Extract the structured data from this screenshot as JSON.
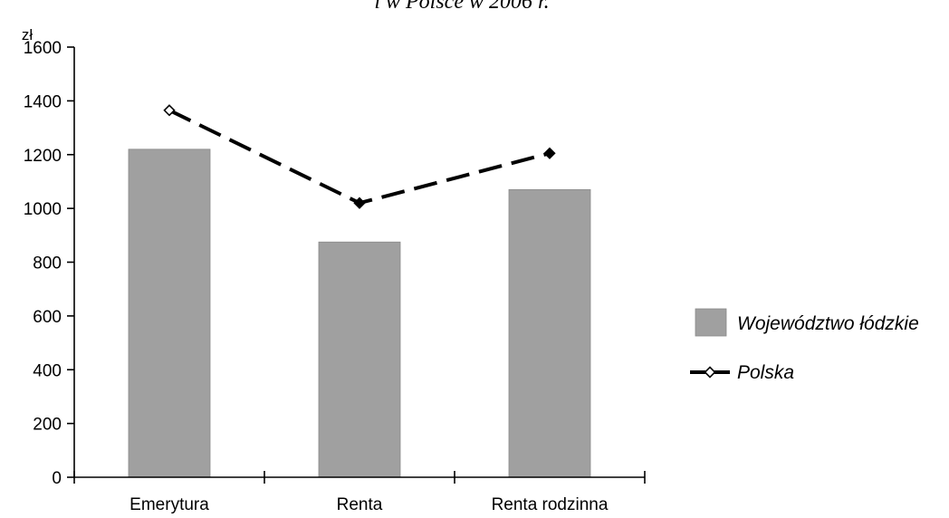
{
  "chart_data": {
    "type": "bar",
    "title": "i w Polsce w 2006 r.",
    "ylabel": "zł",
    "xlabel": "",
    "categories": [
      "Emerytura",
      "Renta",
      "Renta rodzinna"
    ],
    "ylim": [
      0,
      1600
    ],
    "yticks": [
      0,
      200,
      400,
      600,
      800,
      1000,
      1200,
      1400,
      1600
    ],
    "grid": false,
    "legend_position": "right",
    "series": [
      {
        "name": "Województwo łódzkie",
        "kind": "bar",
        "color": "#a0a0a0",
        "values": [
          1220,
          875,
          1070
        ]
      },
      {
        "name": "Polska",
        "kind": "line",
        "style": "dashed",
        "color": "#000000",
        "values": [
          1365,
          1020,
          1205
        ]
      }
    ]
  }
}
